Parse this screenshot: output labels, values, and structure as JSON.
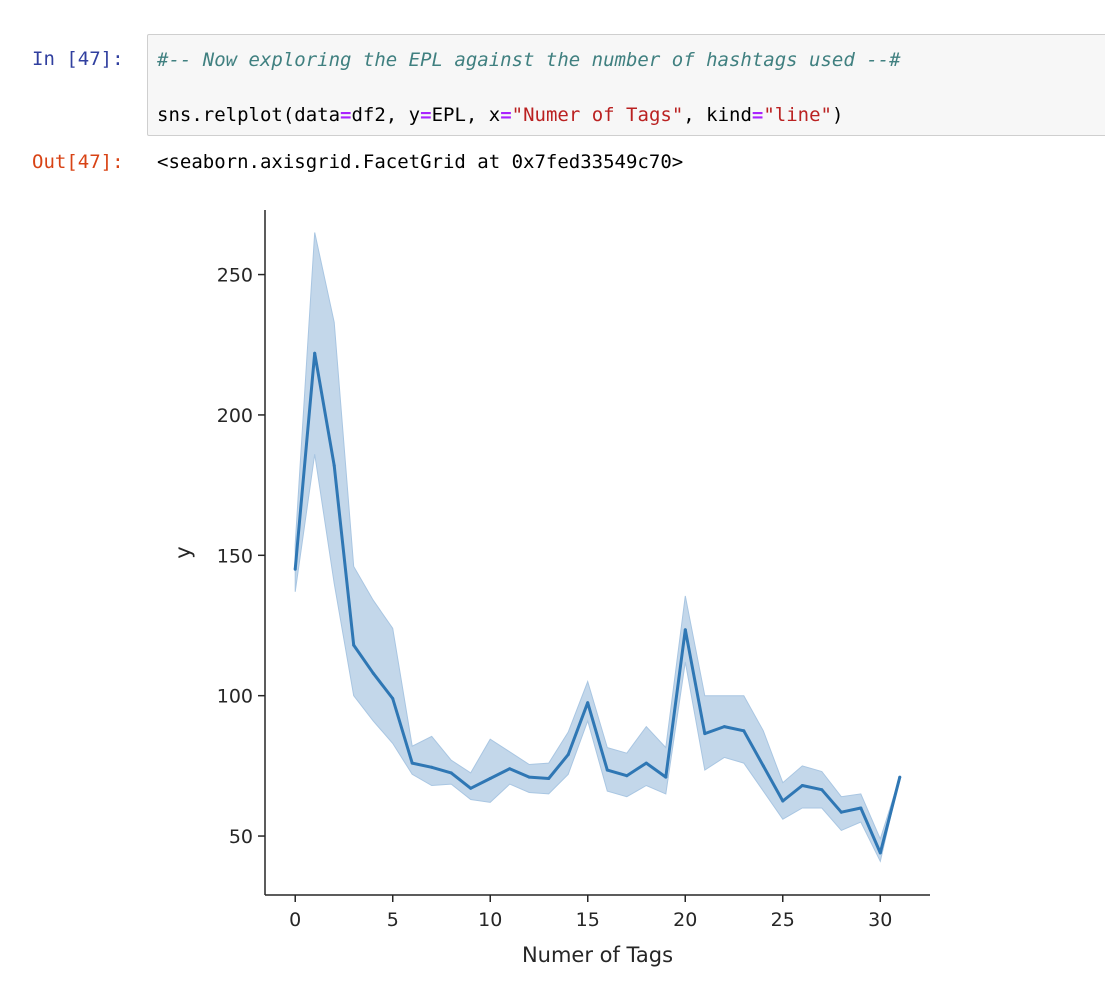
{
  "cell_in": {
    "prompt": "In [47]:",
    "comment": "#-- Now exploring the EPL against the number of hashtags used --#",
    "code": {
      "func": "sns.relplot(data",
      "eq": "=",
      "df": "df2, y",
      "epl": "EPL, x",
      "x_str": "\"Numer of Tags\"",
      "kind_prefix": ", kind",
      "kind_str": "\"line\"",
      "close": ")"
    }
  },
  "cell_out": {
    "prompt": "Out[47]:",
    "text": "<seaborn.axisgrid.FacetGrid at 0x7fed33549c70>"
  },
  "colors": {
    "line": "#2f77b4",
    "band": "#c3d7ea",
    "band_edge": "#a9c6e2",
    "axis": "#262626"
  },
  "chart_data": {
    "type": "line",
    "xlabel": "Numer of Tags",
    "ylabel": "y",
    "xlim": [
      -1.55,
      32.55
    ],
    "ylim": [
      29,
      273
    ],
    "xticks": [
      0,
      5,
      10,
      15,
      20,
      25,
      30
    ],
    "yticks": [
      50,
      100,
      150,
      200,
      250
    ],
    "grid": false,
    "legend": "none",
    "series": [
      {
        "x": [
          0,
          1,
          2,
          3,
          4,
          5,
          6,
          7,
          8,
          9,
          10,
          11,
          12,
          13,
          14,
          15,
          16,
          17,
          18,
          19,
          20,
          21,
          22,
          23,
          24,
          25,
          26,
          27,
          28,
          29,
          30,
          31
        ],
        "y": [
          145,
          222,
          182,
          118,
          108,
          99,
          76,
          74.5,
          72.5,
          67,
          70.5,
          74,
          71,
          70.5,
          79,
          97.5,
          73.5,
          71.5,
          76,
          71,
          123.5,
          86.5,
          89,
          87.5,
          75,
          62.5,
          68,
          66.5,
          58.5,
          60,
          44,
          71
        ],
        "ci_lower": [
          137,
          186,
          140,
          100,
          91,
          83,
          72,
          68,
          68.5,
          63,
          62,
          68.5,
          65.5,
          65,
          72,
          91,
          66,
          64,
          68,
          65,
          112,
          73.5,
          78,
          76,
          66,
          56,
          60,
          60,
          52,
          55,
          41,
          71
        ],
        "ci_upper": [
          154,
          265,
          233,
          146,
          134,
          124,
          82,
          85.5,
          77,
          72.5,
          84.5,
          80,
          75.5,
          76,
          87,
          105,
          81.5,
          79.5,
          89,
          81.5,
          135.5,
          100,
          100,
          100,
          87.5,
          69,
          75,
          73,
          64,
          65,
          49,
          71
        ]
      }
    ]
  }
}
